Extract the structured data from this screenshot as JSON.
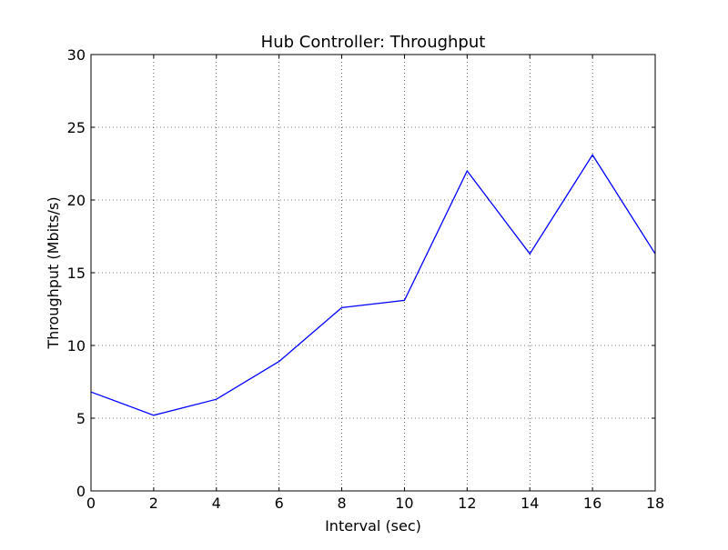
{
  "chart_data": {
    "type": "line",
    "title": "Hub Controller: Throughput",
    "xlabel": "Interval (sec)",
    "ylabel": "Throughput (Mbits/s)",
    "xlim": [
      0,
      18
    ],
    "ylim": [
      0,
      30
    ],
    "xticks": [
      0,
      2,
      4,
      6,
      8,
      10,
      12,
      14,
      16,
      18
    ],
    "yticks": [
      0,
      5,
      10,
      15,
      20,
      25,
      30
    ],
    "grid": true,
    "legend": "none",
    "series": [
      {
        "color": "#0000ff",
        "x": [
          0,
          2,
          4,
          6,
          8,
          10,
          12,
          14,
          16,
          18
        ],
        "y": [
          6.8,
          5.2,
          6.3,
          8.9,
          12.6,
          13.1,
          22.0,
          16.3,
          23.1,
          16.3
        ]
      }
    ]
  }
}
